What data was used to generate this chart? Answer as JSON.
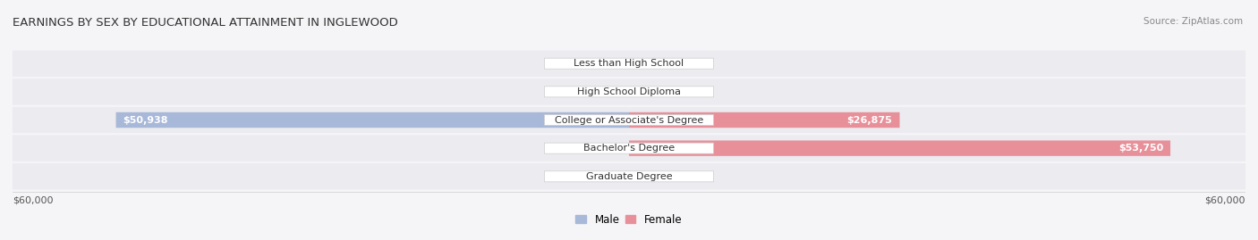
{
  "title": "EARNINGS BY SEX BY EDUCATIONAL ATTAINMENT IN INGLEWOOD",
  "source": "Source: ZipAtlas.com",
  "categories": [
    "Less than High School",
    "High School Diploma",
    "College or Associate's Degree",
    "Bachelor's Degree",
    "Graduate Degree"
  ],
  "male_values": [
    0,
    0,
    50938,
    0,
    0
  ],
  "female_values": [
    0,
    0,
    26875,
    53750,
    0
  ],
  "max_value": 60000,
  "male_color": "#a8b8d8",
  "female_color": "#e8909a",
  "row_bg_color": "#ebebf0",
  "bar_height": 0.55,
  "label_fontsize": 8.0,
  "title_fontsize": 9.5,
  "axis_label_fontsize": 8,
  "legend_fontsize": 8.5,
  "male_label": "Male",
  "female_label": "Female",
  "x_left_label": "$60,000",
  "x_right_label": "$60,000"
}
